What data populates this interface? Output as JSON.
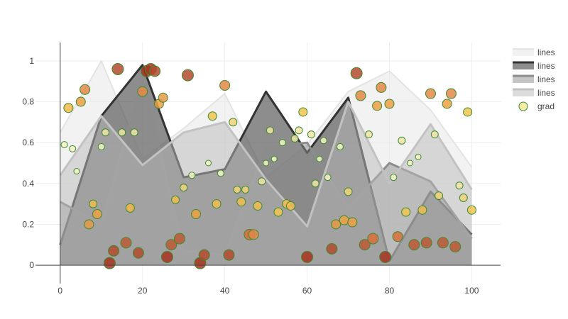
{
  "chart_data": {
    "type": "area",
    "title": "",
    "xlabel": "",
    "ylabel": "",
    "xlim": [
      -6,
      107
    ],
    "ylim": [
      -0.09,
      1.09
    ],
    "x_ticks": [
      0,
      20,
      40,
      60,
      80,
      100
    ],
    "y_ticks": [
      0,
      0.2,
      0.4,
      0.6,
      0.8,
      1
    ],
    "grid": true,
    "legend_position": "top-right",
    "x": [
      0,
      10,
      20,
      30,
      40,
      50,
      60,
      70,
      80,
      90,
      100
    ],
    "series": [
      {
        "name": "lines",
        "kind": "filled-line",
        "fill": "rgba(232,232,232,0.55)",
        "line": "rgba(225,225,225,0.9)",
        "line_width": 2,
        "values": [
          0.65,
          1.0,
          0.52,
          0.67,
          0.84,
          0.43,
          0.59,
          0.85,
          0.95,
          0.76,
          0.48
        ]
      },
      {
        "name": "lines",
        "kind": "filled-line",
        "fill": "rgba(80,80,80,0.65)",
        "line": "#333333",
        "line_width": 3,
        "values": [
          0.1,
          0.73,
          0.98,
          0.43,
          0.47,
          0.85,
          0.55,
          0.82,
          0.02,
          0.36,
          0.15
        ]
      },
      {
        "name": "lines",
        "kind": "filled-line",
        "fill": "rgba(140,140,140,0.5)",
        "line": "#8c8c8c",
        "line_width": 3,
        "values": [
          0.31,
          0.2,
          0.92,
          0.07,
          0.05,
          0.58,
          0.6,
          0.28,
          0.5,
          0.41,
          0.13
        ]
      },
      {
        "name": "lines",
        "kind": "filled-line",
        "fill": "rgba(185,185,185,0.5)",
        "line": "#c2c2c2",
        "line_width": 3,
        "values": [
          0.44,
          0.73,
          0.49,
          0.65,
          0.7,
          0.42,
          0.19,
          0.8,
          0.4,
          0.69,
          0.37
        ]
      },
      {
        "name": "grad",
        "kind": "markers",
        "marker_line": "#3d8a2e",
        "points": [
          {
            "x": 1,
            "y": 0.59,
            "size": 9,
            "color": "#f5f3c4"
          },
          {
            "x": 2,
            "y": 0.77,
            "size": 13,
            "color": "#f2b648"
          },
          {
            "x": 3,
            "y": 0.57,
            "size": 9,
            "color": "#f5f3c4"
          },
          {
            "x": 4,
            "y": 0.46,
            "size": 8,
            "color": "#f5f3c4"
          },
          {
            "x": 5,
            "y": 0.8,
            "size": 13,
            "color": "#eda045"
          },
          {
            "x": 6,
            "y": 0.86,
            "size": 14,
            "color": "#e38845"
          },
          {
            "x": 7,
            "y": 0.2,
            "size": 13,
            "color": "#e69a46"
          },
          {
            "x": 8,
            "y": 0.3,
            "size": 11,
            "color": "#f2bc52"
          },
          {
            "x": 9,
            "y": 0.25,
            "size": 13,
            "color": "#eda043"
          },
          {
            "x": 10,
            "y": 0.58,
            "size": 9,
            "color": "#f5f3c4"
          },
          {
            "x": 11,
            "y": 0.65,
            "size": 10,
            "color": "#f0e4a8"
          },
          {
            "x": 12,
            "y": 0.01,
            "size": 16,
            "color": "#a83220"
          },
          {
            "x": 13,
            "y": 0.07,
            "size": 15,
            "color": "#b34a2e"
          },
          {
            "x": 14,
            "y": 0.96,
            "size": 16,
            "color": "#b34a2e"
          },
          {
            "x": 15,
            "y": 0.65,
            "size": 10,
            "color": "#f0e4a8"
          },
          {
            "x": 16,
            "y": 0.11,
            "size": 15,
            "color": "#bd5a35"
          },
          {
            "x": 17,
            "y": 0.28,
            "size": 12,
            "color": "#f2b648"
          },
          {
            "x": 18,
            "y": 0.65,
            "size": 10,
            "color": "#f0e4a8"
          },
          {
            "x": 19,
            "y": 0.06,
            "size": 15,
            "color": "#b34a2e"
          },
          {
            "x": 20,
            "y": 0.85,
            "size": 14,
            "color": "#e38845"
          },
          {
            "x": 21,
            "y": 0.95,
            "size": 16,
            "color": "#a83220"
          },
          {
            "x": 22,
            "y": 0.96,
            "size": 16,
            "color": "#a83220"
          },
          {
            "x": 23,
            "y": 0.95,
            "size": 15,
            "color": "#b34a2e"
          },
          {
            "x": 24,
            "y": 0.79,
            "size": 13,
            "color": "#eda045"
          },
          {
            "x": 25,
            "y": 0.82,
            "size": 13,
            "color": "#e69a46"
          },
          {
            "x": 26,
            "y": 0.04,
            "size": 16,
            "color": "#a83220"
          },
          {
            "x": 27,
            "y": 0.1,
            "size": 15,
            "color": "#bd5a35"
          },
          {
            "x": 28,
            "y": 0.32,
            "size": 11,
            "color": "#f2bc52"
          },
          {
            "x": 29,
            "y": 0.13,
            "size": 15,
            "color": "#bd5a35"
          },
          {
            "x": 30,
            "y": 0.38,
            "size": 10,
            "color": "#f2d47a"
          },
          {
            "x": 31,
            "y": 0.93,
            "size": 16,
            "color": "#b34a2e"
          },
          {
            "x": 32,
            "y": 0.44,
            "size": 9,
            "color": "#f5f3c4"
          },
          {
            "x": 33,
            "y": 0.25,
            "size": 13,
            "color": "#eda043"
          },
          {
            "x": 34,
            "y": 0.01,
            "size": 16,
            "color": "#a83220"
          },
          {
            "x": 35,
            "y": 0.05,
            "size": 15,
            "color": "#b34a2e"
          },
          {
            "x": 36,
            "y": 0.5,
            "size": 8,
            "color": "#f5f3c4"
          },
          {
            "x": 37,
            "y": 0.73,
            "size": 12,
            "color": "#f2c453"
          },
          {
            "x": 38,
            "y": 0.3,
            "size": 12,
            "color": "#f2bc52"
          },
          {
            "x": 39,
            "y": 0.45,
            "size": 9,
            "color": "#f5f3c4"
          },
          {
            "x": 40,
            "y": 0.88,
            "size": 14,
            "color": "#e38845"
          },
          {
            "x": 41,
            "y": 0.05,
            "size": 15,
            "color": "#b34a2e"
          },
          {
            "x": 42,
            "y": 0.7,
            "size": 11,
            "color": "#f2d47a"
          },
          {
            "x": 43,
            "y": 0.37,
            "size": 10,
            "color": "#f2d47a"
          },
          {
            "x": 44,
            "y": 0.31,
            "size": 12,
            "color": "#f2bc52"
          },
          {
            "x": 45,
            "y": 0.37,
            "size": 10,
            "color": "#f2d47a"
          },
          {
            "x": 46,
            "y": 0.15,
            "size": 15,
            "color": "#d96f3a"
          },
          {
            "x": 47,
            "y": 0.15,
            "size": 14,
            "color": "#e38845"
          },
          {
            "x": 48,
            "y": 0.29,
            "size": 12,
            "color": "#f2bc52"
          },
          {
            "x": 49,
            "y": 0.41,
            "size": 10,
            "color": "#f2e3a6"
          },
          {
            "x": 50,
            "y": 0.5,
            "size": 8,
            "color": "#f5f3c4"
          },
          {
            "x": 51,
            "y": 0.66,
            "size": 10,
            "color": "#f0e4a8"
          },
          {
            "x": 52,
            "y": 0.52,
            "size": 8,
            "color": "#f5f3c4"
          },
          {
            "x": 53,
            "y": 0.26,
            "size": 12,
            "color": "#f2c453"
          },
          {
            "x": 54,
            "y": 0.6,
            "size": 9,
            "color": "#f5f3c4"
          },
          {
            "x": 55,
            "y": 0.3,
            "size": 12,
            "color": "#f2bc52"
          },
          {
            "x": 56,
            "y": 0.29,
            "size": 12,
            "color": "#f2bc52"
          },
          {
            "x": 57,
            "y": 0.62,
            "size": 10,
            "color": "#f0e4a8"
          },
          {
            "x": 58,
            "y": 0.66,
            "size": 10,
            "color": "#f2e3a6"
          },
          {
            "x": 59,
            "y": 0.75,
            "size": 12,
            "color": "#f2c453"
          },
          {
            "x": 60,
            "y": 0.04,
            "size": 16,
            "color": "#a83220"
          },
          {
            "x": 61,
            "y": 0.64,
            "size": 10,
            "color": "#f0e4a8"
          },
          {
            "x": 62,
            "y": 0.4,
            "size": 10,
            "color": "#f2e3a6"
          },
          {
            "x": 63,
            "y": 0.52,
            "size": 8,
            "color": "#f5f3c4"
          },
          {
            "x": 64,
            "y": 0.61,
            "size": 9,
            "color": "#f5f3c4"
          },
          {
            "x": 65,
            "y": 0.43,
            "size": 9,
            "color": "#f5f3c4"
          },
          {
            "x": 66,
            "y": 0.08,
            "size": 15,
            "color": "#b34a2e"
          },
          {
            "x": 67,
            "y": 0.2,
            "size": 13,
            "color": "#e69a46"
          },
          {
            "x": 68,
            "y": 0.58,
            "size": 9,
            "color": "#f5f3c4"
          },
          {
            "x": 69,
            "y": 0.22,
            "size": 13,
            "color": "#eda043"
          },
          {
            "x": 70,
            "y": 0.36,
            "size": 11,
            "color": "#f2d47a"
          },
          {
            "x": 71,
            "y": 0.21,
            "size": 13,
            "color": "#eda043"
          },
          {
            "x": 72,
            "y": 0.94,
            "size": 16,
            "color": "#b34a2e"
          },
          {
            "x": 73,
            "y": 0.83,
            "size": 14,
            "color": "#e38845"
          },
          {
            "x": 74,
            "y": 0.1,
            "size": 15,
            "color": "#bd5a35"
          },
          {
            "x": 75,
            "y": 0.64,
            "size": 10,
            "color": "#f0e4a8"
          },
          {
            "x": 76,
            "y": 0.13,
            "size": 15,
            "color": "#d96f3a"
          },
          {
            "x": 77,
            "y": 0.78,
            "size": 13,
            "color": "#eda045"
          },
          {
            "x": 78,
            "y": 0.87,
            "size": 14,
            "color": "#e38845"
          },
          {
            "x": 79,
            "y": 0.04,
            "size": 16,
            "color": "#a83220"
          },
          {
            "x": 80,
            "y": 0.79,
            "size": 13,
            "color": "#eda045"
          },
          {
            "x": 81,
            "y": 0.43,
            "size": 9,
            "color": "#f5f3c4"
          },
          {
            "x": 82,
            "y": 0.14,
            "size": 14,
            "color": "#d96f3a"
          },
          {
            "x": 83,
            "y": 0.61,
            "size": 10,
            "color": "#f0e4a8"
          },
          {
            "x": 84,
            "y": 0.26,
            "size": 12,
            "color": "#f2c453"
          },
          {
            "x": 85,
            "y": 0.5,
            "size": 8,
            "color": "#f5f3c4"
          },
          {
            "x": 86,
            "y": 0.1,
            "size": 15,
            "color": "#bd5a35"
          },
          {
            "x": 87,
            "y": 0.53,
            "size": 8,
            "color": "#f5f3c4"
          },
          {
            "x": 88,
            "y": 0.27,
            "size": 12,
            "color": "#f2bc52"
          },
          {
            "x": 89,
            "y": 0.11,
            "size": 15,
            "color": "#bd5a35"
          },
          {
            "x": 90,
            "y": 0.84,
            "size": 14,
            "color": "#e38845"
          },
          {
            "x": 91,
            "y": 0.64,
            "size": 10,
            "color": "#f0e4a8"
          },
          {
            "x": 92,
            "y": 0.34,
            "size": 11,
            "color": "#f2d47a"
          },
          {
            "x": 93,
            "y": 0.11,
            "size": 15,
            "color": "#bd5a35"
          },
          {
            "x": 94,
            "y": 0.79,
            "size": 13,
            "color": "#eda045"
          },
          {
            "x": 95,
            "y": 0.84,
            "size": 14,
            "color": "#e38845"
          },
          {
            "x": 96,
            "y": 0.09,
            "size": 15,
            "color": "#bd5a35"
          },
          {
            "x": 97,
            "y": 0.39,
            "size": 10,
            "color": "#f2e3a6"
          },
          {
            "x": 98,
            "y": 0.33,
            "size": 11,
            "color": "#f2d47a"
          },
          {
            "x": 99,
            "y": 0.75,
            "size": 12,
            "color": "#f2c453"
          },
          {
            "x": 100,
            "y": 0.27,
            "size": 12,
            "color": "#f2c453"
          }
        ]
      }
    ]
  }
}
